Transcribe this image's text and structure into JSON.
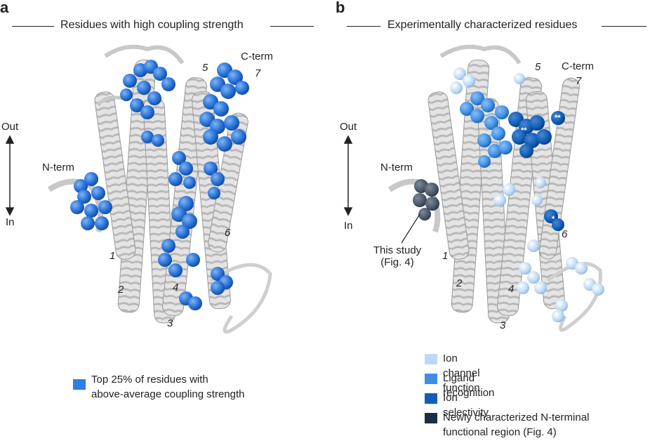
{
  "panel_a": {
    "letter": "a",
    "title": "Residues with high coupling strength",
    "out_label": "Out",
    "in_label": "In",
    "nterm_label": "N-term",
    "cterm_label": "C-term",
    "helix_numbers": [
      "1",
      "2",
      "3",
      "4",
      "5",
      "6",
      "7"
    ],
    "legend": {
      "color": "#2f7fe0",
      "line1": "Top 25% of residues with",
      "line2": "above-average coupling strength"
    }
  },
  "panel_b": {
    "letter": "b",
    "title": "Experimentally characterized residues",
    "out_label": "Out",
    "in_label": "In",
    "nterm_label": "N-term",
    "cterm_label": "C-term",
    "helix_numbers": [
      "1",
      "2",
      "3",
      "4",
      "5",
      "6",
      "7"
    ],
    "annotation_line1": "This study",
    "annotation_line2": "(Fig. 4)",
    "marks": {
      "double_star": "**",
      "single_star": "*"
    },
    "legend": [
      {
        "label": "Ion channel function",
        "color": "#bcd8f5"
      },
      {
        "label": "Ligand recognition",
        "color": "#3d8fe6"
      },
      {
        "label": "Ion selectivity",
        "color": "#0f5fb8"
      },
      {
        "label": "Newly characterized N-terminal",
        "label2": "functional region (Fig. 4)",
        "color": "#1a2e48"
      }
    ]
  }
}
